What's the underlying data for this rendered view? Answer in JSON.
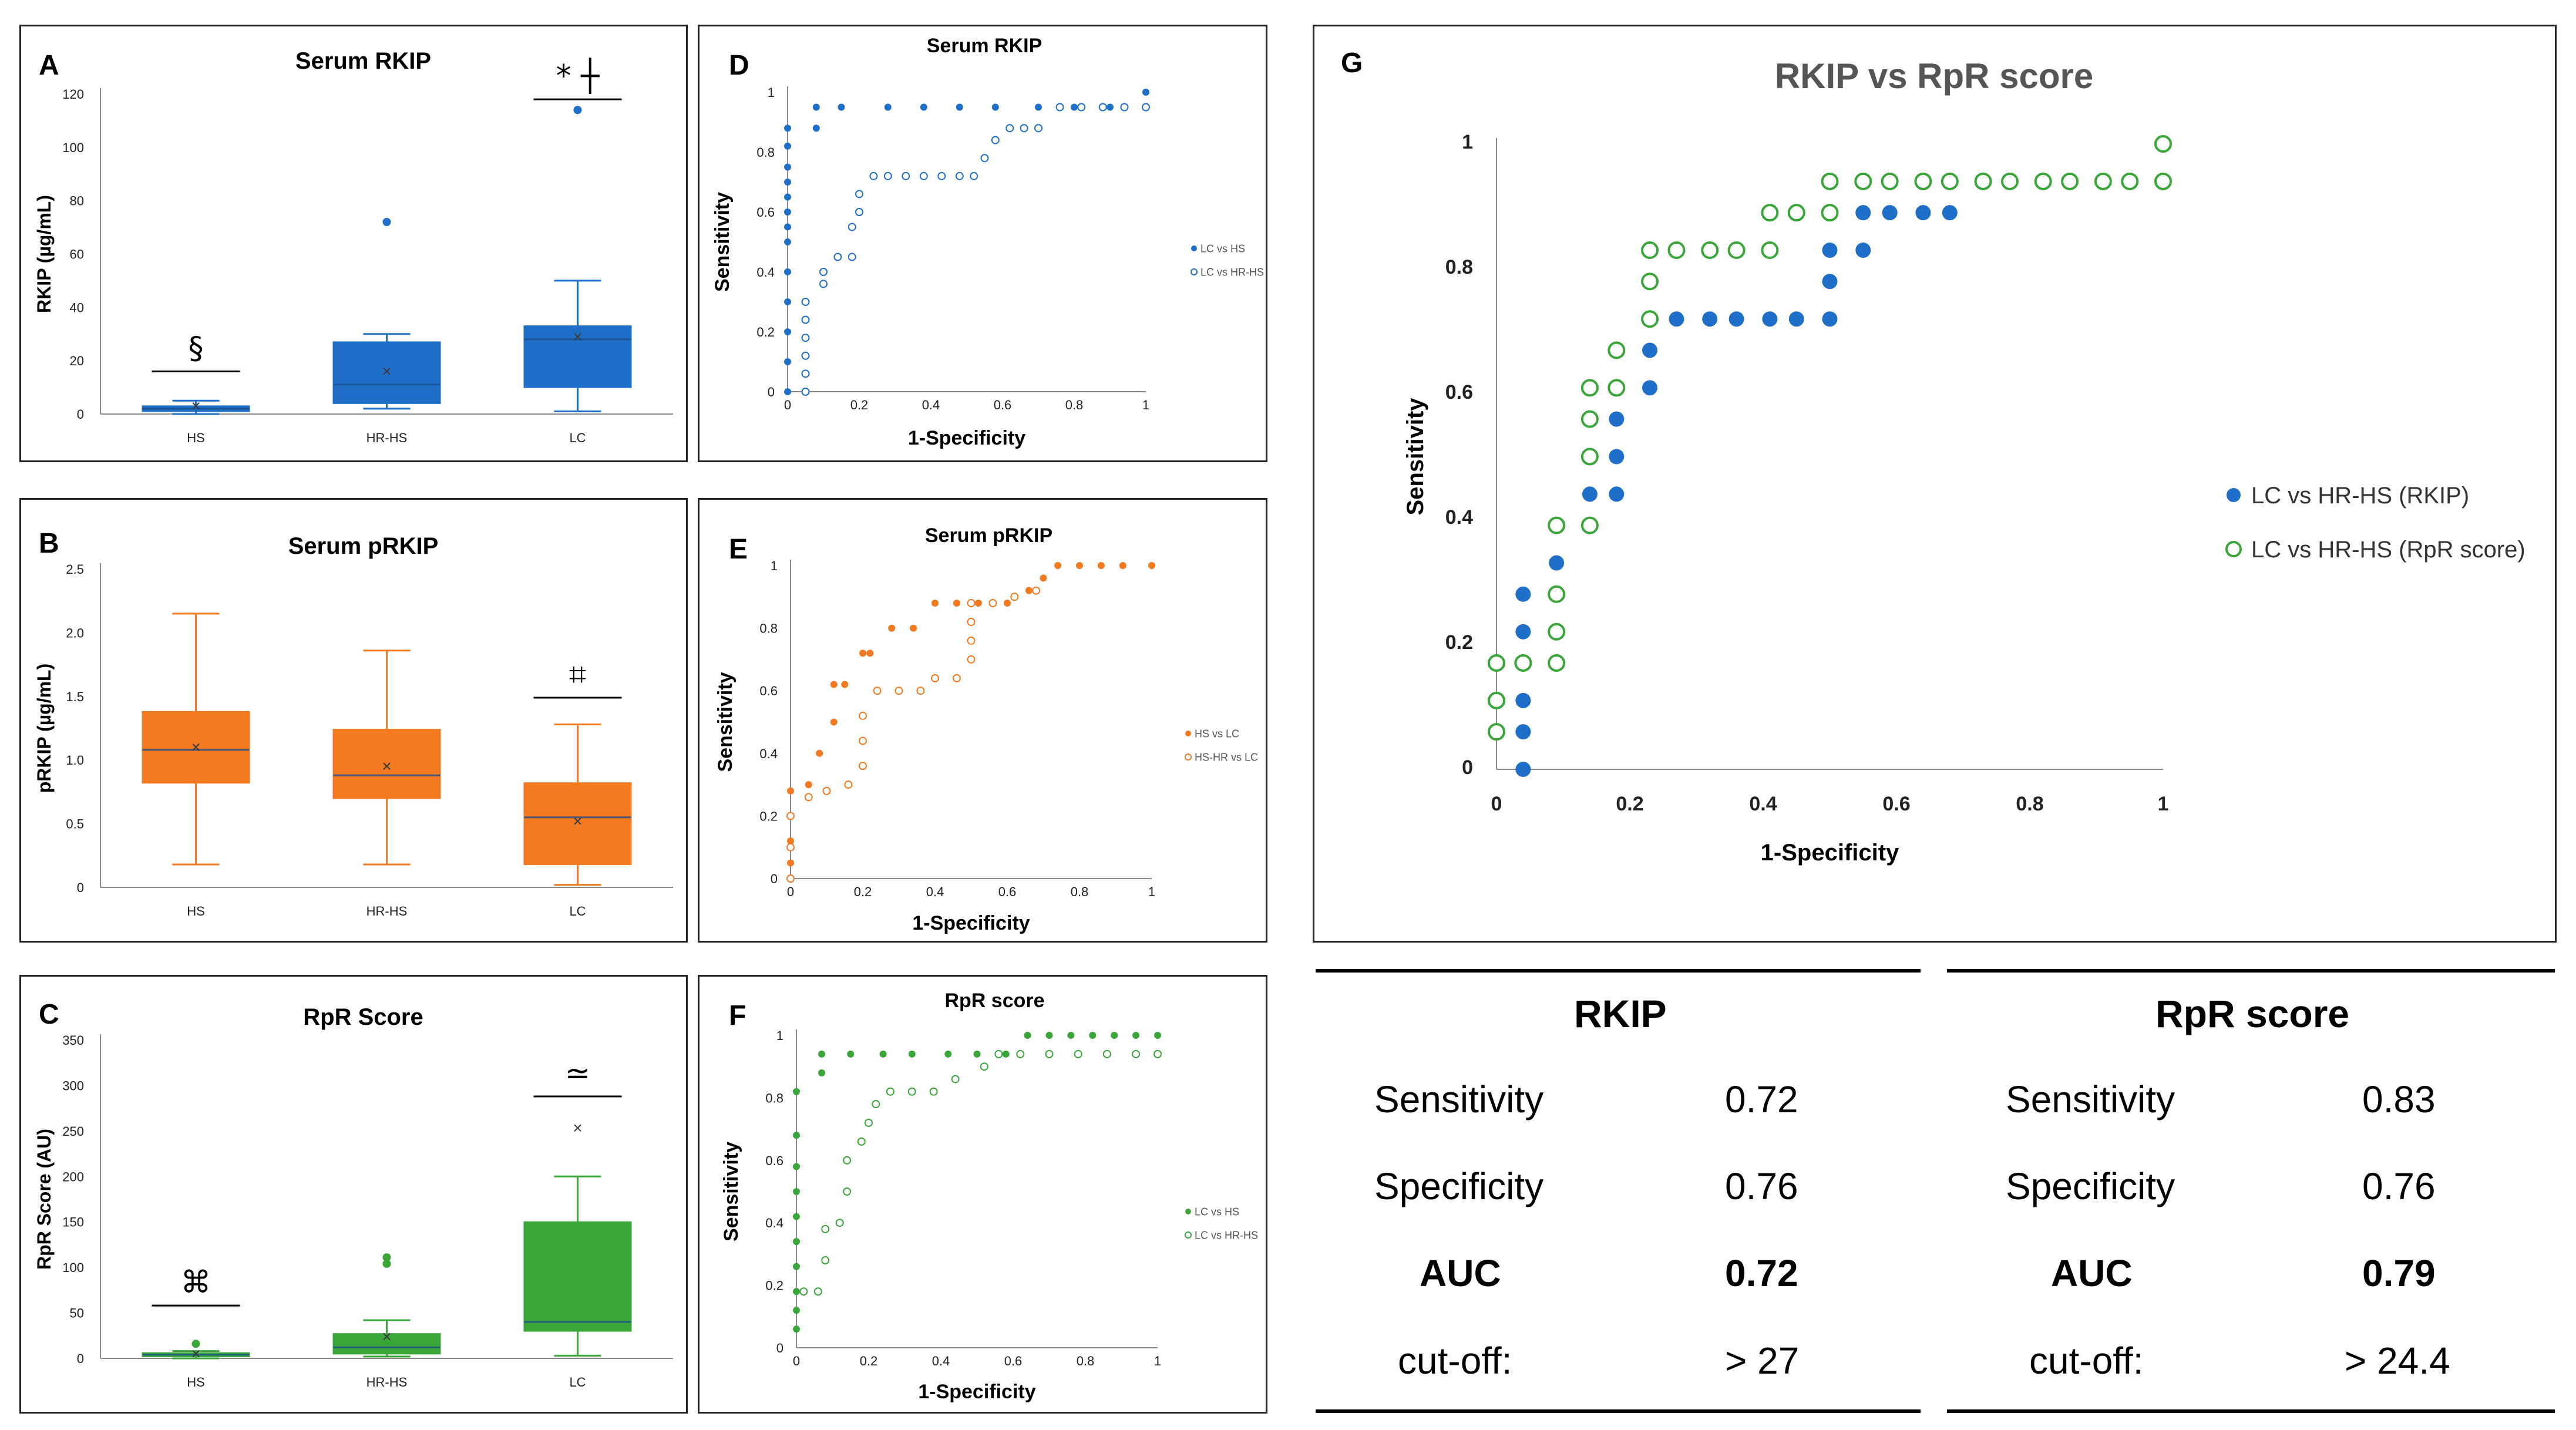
{
  "colors": {
    "blue": "#1f6fc8",
    "orange": "#f37a21",
    "green": "#3aa63a",
    "axis": "#8a8a8a",
    "text": "#222222"
  },
  "chart_data": [
    {
      "id": "A",
      "type": "box",
      "letter": "A",
      "title": "Serum RKIP",
      "ylabel": "RKIP (µg/mL)",
      "ylim": [
        0,
        120
      ],
      "yticks": [
        "0",
        "20",
        "40",
        "60",
        "80",
        "100",
        "120"
      ],
      "categories": [
        "HS",
        "HR-HS",
        "LC"
      ],
      "series": [
        {
          "name": "HS",
          "min": 0,
          "q1": 1,
          "median": 2,
          "q3": 3,
          "max": 5,
          "mean": 3,
          "outliers": []
        },
        {
          "name": "HR-HS",
          "min": 2,
          "q1": 4,
          "median": 11,
          "q3": 27,
          "max": 30,
          "mean": 16,
          "outliers": [
            72
          ]
        },
        {
          "name": "LC",
          "min": 1,
          "q1": 10,
          "median": 28,
          "q3": 33,
          "max": 50,
          "mean": 29,
          "outliers": [
            114
          ]
        }
      ],
      "annotations": [
        {
          "category": 0,
          "symbol": "§",
          "level": 16
        },
        {
          "category": 2,
          "symbol": "* ┼",
          "level": 118
        }
      ]
    },
    {
      "id": "B",
      "type": "box",
      "letter": "B",
      "title": "Serum pRKIP",
      "ylabel": "pRKIP (µg/mL)",
      "ylim": [
        0,
        2.5
      ],
      "yticks": [
        "0",
        "0.5",
        "1.0",
        "1.5",
        "2.0",
        "2.5"
      ],
      "categories": [
        "HS",
        "HR-HS",
        "LC"
      ],
      "series": [
        {
          "name": "HS",
          "min": 0.18,
          "q1": 0.82,
          "median": 1.08,
          "q3": 1.38,
          "max": 2.15,
          "mean": 1.1,
          "outliers": []
        },
        {
          "name": "HR-HS",
          "min": 0.18,
          "q1": 0.7,
          "median": 0.88,
          "q3": 1.24,
          "max": 1.86,
          "mean": 0.95,
          "outliers": []
        },
        {
          "name": "LC",
          "min": 0.02,
          "q1": 0.18,
          "median": 0.55,
          "q3": 0.82,
          "max": 1.28,
          "mean": 0.52,
          "outliers": []
        }
      ],
      "annotations": [
        {
          "category": 2,
          "symbol": "⌗",
          "level": 1.49
        }
      ]
    },
    {
      "id": "C",
      "type": "box",
      "letter": "C",
      "title": "RpR Score",
      "ylabel": "RpR Score (AU)",
      "ylim": [
        0,
        350
      ],
      "yticks": [
        "0",
        "50",
        "100",
        "150",
        "200",
        "250",
        "300",
        "350"
      ],
      "categories": [
        "HS",
        "HR-HS",
        "LC"
      ],
      "series": [
        {
          "name": "HS",
          "min": 0,
          "q1": 2,
          "median": 4,
          "q3": 6,
          "max": 8,
          "mean": 5,
          "outliers": [
            16
          ]
        },
        {
          "name": "HR-HS",
          "min": 2,
          "q1": 5,
          "median": 12,
          "q3": 27,
          "max": 42,
          "mean": 24,
          "outliers": [
            104,
            111
          ]
        },
        {
          "name": "LC",
          "min": 3,
          "q1": 30,
          "median": 40,
          "q3": 150,
          "max": 200,
          "mean": 253,
          "outliers": []
        }
      ],
      "annotations": [
        {
          "category": 0,
          "symbol": "⌘",
          "level": 58
        },
        {
          "category": 2,
          "symbol": "≃",
          "level": 288
        }
      ]
    },
    {
      "id": "D",
      "type": "scatter",
      "letter": "D",
      "title": "Serum RKIP",
      "xlabel": "1-Specificity",
      "ylabel": "Sensitivity",
      "xticks": [
        "0",
        "0.2",
        "0.4",
        "0.6",
        "0.8",
        "1"
      ],
      "yticks": [
        "0",
        "0.2",
        "0.4",
        "0.6",
        "0.8",
        "1"
      ],
      "series": [
        {
          "name": "LC vs HS",
          "filled": true,
          "x": [
            0,
            0,
            0,
            0,
            0,
            0,
            0,
            0,
            0,
            0,
            0,
            0,
            0,
            0.08,
            0.08,
            0.15,
            0.28,
            0.38,
            0.48,
            0.58,
            0.7,
            0.8,
            0.9,
            1.0,
            1.0
          ],
          "y": [
            0,
            0.1,
            0.2,
            0.3,
            0.4,
            0.5,
            0.55,
            0.6,
            0.65,
            0.7,
            0.75,
            0.82,
            0.88,
            0.88,
            0.95,
            0.95,
            0.95,
            0.95,
            0.95,
            0.95,
            0.95,
            0.95,
            0.95,
            0.95,
            1.0
          ]
        },
        {
          "name": "LC vs HR-HS",
          "filled": false,
          "x": [
            0.05,
            0.05,
            0.05,
            0.05,
            0.05,
            0.05,
            0.1,
            0.1,
            0.14,
            0.18,
            0.18,
            0.2,
            0.2,
            0.24,
            0.28,
            0.33,
            0.38,
            0.43,
            0.48,
            0.52,
            0.55,
            0.58,
            0.62,
            0.66,
            0.7,
            0.76,
            0.82,
            0.88,
            0.94,
            1.0
          ],
          "y": [
            0,
            0.06,
            0.12,
            0.18,
            0.24,
            0.3,
            0.36,
            0.4,
            0.45,
            0.45,
            0.55,
            0.6,
            0.66,
            0.72,
            0.72,
            0.72,
            0.72,
            0.72,
            0.72,
            0.72,
            0.78,
            0.84,
            0.88,
            0.88,
            0.88,
            0.95,
            0.95,
            0.95,
            0.95,
            0.95
          ]
        }
      ]
    },
    {
      "id": "E",
      "type": "scatter",
      "letter": "E",
      "title": "Serum pRKIP",
      "xlabel": "1-Specificity",
      "ylabel": "Sensitivity",
      "xticks": [
        "0",
        "0.2",
        "0.4",
        "0.6",
        "0.8",
        "1"
      ],
      "yticks": [
        "0",
        "0.2",
        "0.4",
        "0.6",
        "0.8",
        "1"
      ],
      "series": [
        {
          "name": "HS vs LC",
          "filled": true,
          "x": [
            0,
            0,
            0,
            0,
            0.05,
            0.08,
            0.12,
            0.12,
            0.15,
            0.2,
            0.22,
            0.28,
            0.34,
            0.4,
            0.46,
            0.52,
            0.6,
            0.66,
            0.7,
            0.74,
            0.8,
            0.86,
            0.92,
            1.0
          ],
          "y": [
            0.05,
            0.12,
            0.2,
            0.28,
            0.3,
            0.4,
            0.5,
            0.62,
            0.62,
            0.72,
            0.72,
            0.8,
            0.8,
            0.88,
            0.88,
            0.88,
            0.88,
            0.92,
            0.96,
            1.0,
            1.0,
            1.0,
            1.0,
            1.0
          ],
          "hidden_in_legend": false
        },
        {
          "name": "HS-HR vs LC",
          "filled": false,
          "x": [
            0,
            0,
            0,
            0.05,
            0.1,
            0.16,
            0.2,
            0.2,
            0.2,
            0.24,
            0.3,
            0.36,
            0.4,
            0.46,
            0.5,
            0.5,
            0.5,
            0.5,
            0.56,
            0.62,
            0.68
          ],
          "y": [
            0,
            0.1,
            0.2,
            0.26,
            0.28,
            0.3,
            0.36,
            0.44,
            0.52,
            0.6,
            0.6,
            0.6,
            0.64,
            0.64,
            0.7,
            0.76,
            0.82,
            0.88,
            0.88,
            0.9,
            0.92
          ]
        }
      ]
    },
    {
      "id": "F",
      "type": "scatter",
      "letter": "F",
      "title": "RpR score",
      "xlabel": "1-Specificity",
      "ylabel": "Sensitivity",
      "xticks": [
        "0",
        "0.2",
        "0.4",
        "0.6",
        "0.8",
        "1"
      ],
      "yticks": [
        "0",
        "0.2",
        "0.4",
        "0.6",
        "0.8",
        "1"
      ],
      "series": [
        {
          "name": "LC vs HS",
          "filled": true,
          "x": [
            0,
            0,
            0,
            0,
            0,
            0,
            0,
            0,
            0,
            0,
            0.07,
            0.07,
            0.15,
            0.24,
            0.32,
            0.42,
            0.5,
            0.58,
            0.64,
            0.7,
            0.76,
            0.82,
            0.88,
            0.94,
            1.0
          ],
          "y": [
            0.06,
            0.12,
            0.18,
            0.26,
            0.34,
            0.42,
            0.5,
            0.58,
            0.68,
            0.82,
            0.88,
            0.94,
            0.94,
            0.94,
            0.94,
            0.94,
            0.94,
            0.94,
            1.0,
            1.0,
            1.0,
            1.0,
            1.0,
            1.0,
            1.0
          ]
        },
        {
          "name": "LC vs HR-HS",
          "filled": false,
          "x": [
            0.02,
            0.06,
            0.08,
            0.08,
            0.12,
            0.14,
            0.14,
            0.18,
            0.2,
            0.22,
            0.26,
            0.32,
            0.38,
            0.44,
            0.52,
            0.56,
            0.62,
            0.7,
            0.78,
            0.86,
            0.94,
            1.0
          ],
          "y": [
            0.18,
            0.18,
            0.28,
            0.38,
            0.4,
            0.5,
            0.6,
            0.66,
            0.72,
            0.78,
            0.82,
            0.82,
            0.82,
            0.86,
            0.9,
            0.94,
            0.94,
            0.94,
            0.94,
            0.94,
            0.94,
            0.94
          ]
        }
      ]
    },
    {
      "id": "G",
      "type": "scatter",
      "letter": "G",
      "title": "RKIP vs RpR score",
      "xlabel": "1-Specificity",
      "ylabel": "Sensitivity",
      "xticks": [
        "0",
        "0.2",
        "0.4",
        "0.6",
        "0.8",
        "1"
      ],
      "yticks": [
        "0",
        "0.2",
        "0.4",
        "0.6",
        "0.8",
        "1"
      ],
      "series": [
        {
          "name": "LC vs HR-HS (RKIP)",
          "filled": true,
          "x": [
            0.04,
            0.04,
            0.04,
            0.04,
            0.04,
            0.04,
            0.09,
            0.09,
            0.14,
            0.14,
            0.18,
            0.18,
            0.18,
            0.18,
            0.23,
            0.23,
            0.23,
            0.27,
            0.32,
            0.36,
            0.41,
            0.45,
            0.5,
            0.5,
            0.5,
            0.55,
            0.55,
            0.59,
            0.64,
            0.68,
            0.73,
            0.77,
            0.82,
            0.86,
            0.91,
            0.95,
            1.0
          ],
          "y": [
            0,
            0.06,
            0.11,
            0.17,
            0.22,
            0.28,
            0.28,
            0.33,
            0.39,
            0.44,
            0.44,
            0.5,
            0.56,
            0.61,
            0.61,
            0.67,
            0.72,
            0.72,
            0.72,
            0.72,
            0.72,
            0.72,
            0.72,
            0.78,
            0.83,
            0.83,
            0.89,
            0.89,
            0.89,
            0.89,
            0.94,
            0.94,
            0.94,
            0.94,
            0.94,
            0.94,
            1.0
          ]
        },
        {
          "name": "LC vs HR-HS (RpR score)",
          "filled": false,
          "x": [
            0,
            0,
            0,
            0.04,
            0.09,
            0.09,
            0.09,
            0.09,
            0.14,
            0.14,
            0.14,
            0.14,
            0.18,
            0.18,
            0.23,
            0.23,
            0.23,
            0.27,
            0.32,
            0.36,
            0.41,
            0.41,
            0.45,
            0.5,
            0.5,
            0.55,
            0.59,
            0.64,
            0.68,
            0.73,
            0.77,
            0.82,
            0.86,
            0.91,
            0.95,
            1.0,
            1.0
          ],
          "y": [
            0.06,
            0.11,
            0.17,
            0.17,
            0.17,
            0.22,
            0.28,
            0.39,
            0.39,
            0.5,
            0.56,
            0.61,
            0.61,
            0.67,
            0.72,
            0.78,
            0.83,
            0.83,
            0.83,
            0.83,
            0.83,
            0.89,
            0.89,
            0.89,
            0.94,
            0.94,
            0.94,
            0.94,
            0.94,
            0.94,
            0.94,
            0.94,
            0.94,
            0.94,
            0.94,
            0.94,
            1.0
          ]
        }
      ]
    }
  ],
  "table": {
    "rkip": {
      "header": "RKIP",
      "rows": [
        {
          "label": "Sensitivity",
          "value": "0.72",
          "bold": false
        },
        {
          "label": "Specificity",
          "value": "0.76",
          "bold": false
        },
        {
          "label": "AUC",
          "value": "0.72",
          "bold": true
        },
        {
          "label": "cut-off:",
          "value": "> 27",
          "bold": false
        }
      ]
    },
    "rpr": {
      "header": "RpR score",
      "rows": [
        {
          "label": "Sensitivity",
          "value": "0.83",
          "bold": false
        },
        {
          "label": "Specificity",
          "value": "0.76",
          "bold": false
        },
        {
          "label": "AUC",
          "value": "0.79",
          "bold": true
        },
        {
          "label": "cut-off:",
          "value": "> 24.4",
          "bold": false
        }
      ]
    }
  }
}
